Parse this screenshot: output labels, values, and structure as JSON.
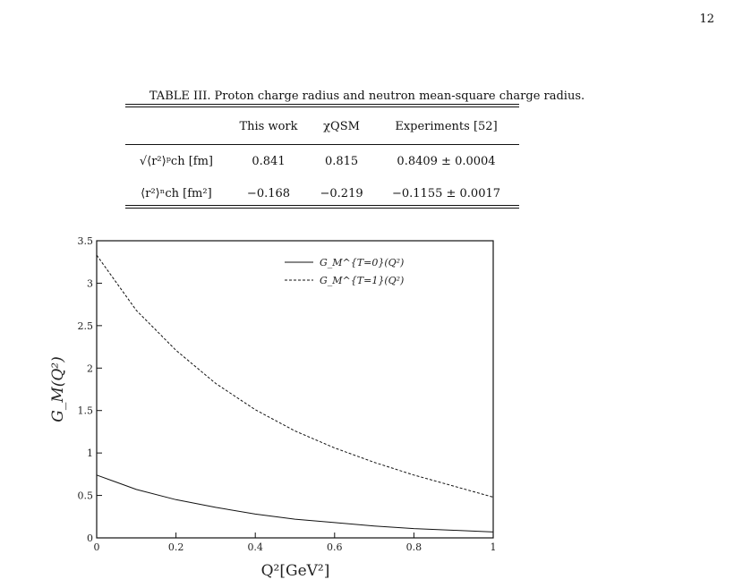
{
  "page": {
    "number": "12"
  },
  "table": {
    "label": "TABLE III.",
    "caption": "Proton charge radius and neutron mean-square charge radius.",
    "columns": [
      "",
      "This work",
      "χQSM",
      "Experiments [52]"
    ],
    "rows": [
      {
        "label": "√⟨r²⟩ᵖch [fm]",
        "this_work": "0.841",
        "chiqsm": "0.815",
        "experiment": "0.8409 ± 0.0004"
      },
      {
        "label": "⟨r²⟩ⁿch [fm²]",
        "this_work": "−0.168",
        "chiqsm": "−0.219",
        "experiment": "−0.1155 ± 0.0017"
      }
    ]
  },
  "chart_data": {
    "type": "line",
    "xlabel": "Q²[GeV²]",
    "ylabel": "G_M(Q²)",
    "xlim": [
      0,
      1
    ],
    "ylim": [
      0,
      3.5
    ],
    "x_ticks": [
      "0",
      "0.2",
      "0.4",
      "0.6",
      "0.8",
      "1"
    ],
    "y_ticks": [
      "0",
      "0.5",
      "1",
      "1.5",
      "2",
      "2.5",
      "3",
      "3.5"
    ],
    "legend_position": "top-right",
    "grid": false,
    "series": [
      {
        "name": "G_M^{T=0}(Q²)",
        "style": "solid",
        "x": [
          0,
          0.1,
          0.2,
          0.3,
          0.4,
          0.5,
          0.6,
          0.7,
          0.8,
          0.9,
          1.0
        ],
        "y": [
          0.74,
          0.57,
          0.45,
          0.36,
          0.28,
          0.22,
          0.18,
          0.14,
          0.11,
          0.09,
          0.07
        ]
      },
      {
        "name": "G_M^{T=1}(Q²)",
        "style": "dashed",
        "x": [
          0,
          0.1,
          0.2,
          0.3,
          0.4,
          0.5,
          0.6,
          0.7,
          0.8,
          0.9,
          1.0
        ],
        "y": [
          3.33,
          2.68,
          2.21,
          1.82,
          1.51,
          1.26,
          1.06,
          0.89,
          0.74,
          0.61,
          0.48
        ]
      }
    ]
  }
}
